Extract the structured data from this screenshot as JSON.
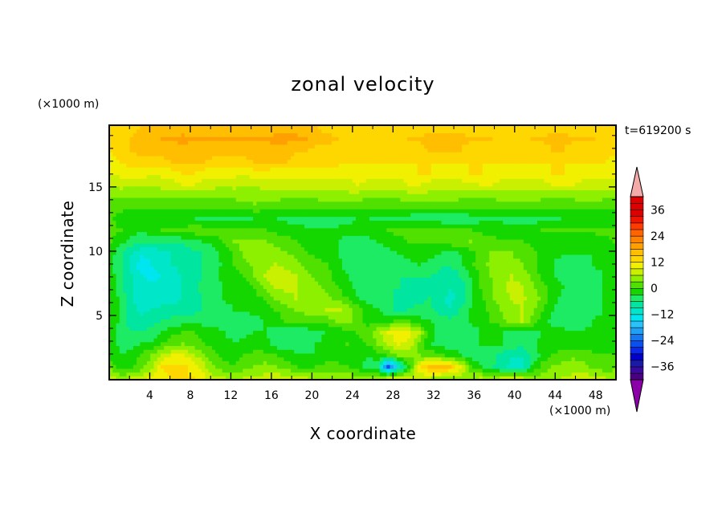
{
  "chart_data": {
    "type": "heatmap",
    "title": "zonal velocity",
    "xlabel": "X coordinate",
    "ylabel": "Z coordinate",
    "x_unit": "(×1000 m)",
    "y_unit": "(×1000 m)",
    "time_label": "t=619200 s",
    "xlim": [
      0,
      50
    ],
    "ylim": [
      0,
      19.8
    ],
    "x_ticks": [
      4,
      8,
      12,
      16,
      20,
      24,
      28,
      32,
      36,
      40,
      44,
      48
    ],
    "y_ticks": [
      5,
      10,
      15
    ],
    "colorbar": {
      "levels": [
        -42,
        -39,
        -36,
        -33,
        -30,
        -27,
        -24,
        -21,
        -18,
        -15,
        -12,
        -9,
        -6,
        -3,
        0,
        3,
        6,
        9,
        12,
        15,
        18,
        21,
        24,
        27,
        30,
        33,
        36,
        39,
        42
      ],
      "tick_values": [
        -36,
        -24,
        -12,
        0,
        12,
        24,
        36
      ],
      "tick_labels": [
        "−36",
        "−24",
        "−12",
        "0",
        "12",
        "24",
        "36"
      ],
      "colors": [
        "#4b0082",
        "#3a0a9e",
        "#1a1aa8",
        "#0000c8",
        "#0a28e6",
        "#0a50f0",
        "#1478f0",
        "#1ea0f5",
        "#28c3fa",
        "#00e6f0",
        "#00e6c8",
        "#00e6a0",
        "#1eeb64",
        "#14d700",
        "#50e100",
        "#8cf000",
        "#c8f000",
        "#f0f000",
        "#ffd700",
        "#ffbe00",
        "#ffa000",
        "#ff8200",
        "#ff6400",
        "#ff3c00",
        "#f01400",
        "#dc0000"
      ],
      "under_color": "#8c00aa",
      "over_color": "#f5aaaa"
    },
    "field": [
      [
        7,
        4,
        6,
        7,
        10,
        11,
        12,
        12,
        12,
        10,
        7,
        6,
        5,
        6,
        6,
        7,
        8,
        7,
        7,
        6,
        5,
        5,
        5,
        5,
        5,
        5,
        5,
        6,
        6,
        7,
        7,
        6,
        5,
        5,
        5,
        5,
        6,
        5,
        6,
        7,
        6,
        5,
        4,
        5,
        6,
        7,
        8,
        7,
        6,
        5
      ],
      [
        1,
        -2,
        -1,
        2,
        5,
        12,
        13,
        13,
        11,
        7,
        3,
        1,
        0,
        2,
        3,
        4,
        3,
        2,
        0,
        -1,
        0,
        1,
        1,
        0,
        -2,
        -4,
        -6,
        -25,
        -11,
        -1,
        11,
        16,
        17,
        15,
        10,
        1,
        -3,
        -5,
        -8,
        -10,
        -12,
        -3,
        1,
        3,
        4,
        5,
        4,
        2,
        1,
        2
      ],
      [
        -1,
        -3,
        -2,
        1,
        3,
        7,
        9,
        9,
        7,
        4,
        1,
        -1,
        -1,
        0,
        1,
        1,
        0,
        -1,
        -2,
        -3,
        -3,
        -2,
        -2,
        -1,
        -2,
        -3,
        -1,
        0,
        3,
        3,
        3,
        2,
        1,
        -1,
        -3,
        -4,
        -5,
        -5,
        -7,
        -9,
        -9,
        -5,
        -2,
        0,
        1,
        2,
        2,
        1,
        0,
        0
      ],
      [
        -2,
        -4,
        -4,
        -3,
        -2,
        0,
        2,
        3,
        2,
        0,
        -1,
        -2,
        -3,
        -2,
        -1,
        -2,
        -4,
        -6,
        -5,
        -4,
        -3,
        -2,
        -1,
        0,
        -1,
        0,
        3,
        7,
        9,
        8,
        2,
        -3,
        -4,
        -5,
        -4,
        -4,
        -3,
        -3,
        -3,
        -4,
        -5,
        -4,
        -2,
        -1,
        -1,
        -2,
        -2,
        -2,
        -1,
        -1
      ],
      [
        -2,
        -5,
        -6,
        -6,
        -5,
        -3,
        -1,
        0,
        0,
        -1,
        -2,
        -3,
        -4,
        -4,
        -3,
        -3,
        -4,
        -5,
        -5,
        -5,
        -4,
        -3,
        -2,
        -1,
        0,
        2,
        5,
        9,
        11,
        10,
        6,
        -1,
        -4,
        -5,
        -5,
        -4,
        -3,
        -3,
        -3,
        -4,
        -5,
        -4,
        -3,
        -2,
        -2,
        -3,
        -3,
        -2,
        -1,
        -1
      ],
      [
        -1,
        -4,
        -8,
        -8,
        -7,
        -6,
        -5,
        -4,
        -4,
        -4,
        -4,
        -4,
        -4,
        -4,
        -4,
        -3,
        -2,
        0,
        1,
        1,
        0,
        1,
        3,
        4,
        2,
        -1,
        -1,
        -1,
        2,
        0,
        -2,
        -3,
        -4,
        -5,
        -5,
        -3,
        -2,
        0,
        2,
        4,
        6,
        2,
        -2,
        -4,
        -5,
        -5,
        -4,
        -3,
        -2,
        -1
      ],
      [
        -1,
        -4,
        -8,
        -10,
        -9,
        -8,
        -8,
        -8,
        -7,
        -6,
        -5,
        -4,
        -3,
        -3,
        -2,
        -2,
        0,
        2,
        3,
        4,
        5,
        6,
        7,
        5,
        2,
        -1,
        -3,
        -5,
        -8,
        -6,
        -5,
        -5,
        -8,
        -9,
        -6,
        -3,
        -1,
        1,
        3,
        5,
        6,
        4,
        0,
        -3,
        -4,
        -5,
        -5,
        -4,
        -3,
        -2
      ],
      [
        -1,
        -4,
        -9,
        -11,
        -11,
        -11,
        -10,
        -9,
        -7,
        -6,
        -5,
        -3,
        -2,
        -2,
        -1,
        0,
        3,
        5,
        6,
        5,
        5,
        4,
        2,
        0,
        -3,
        -4,
        -5,
        -5,
        -7,
        -7,
        -7,
        -6,
        -8,
        -10,
        -8,
        -4,
        -1,
        2,
        5,
        6,
        7,
        5,
        2,
        -2,
        -4,
        -5,
        -5,
        -4,
        -3,
        -2
      ],
      [
        -2,
        -5,
        -9,
        -11,
        -11,
        -11,
        -10,
        -9,
        -7,
        -5,
        -4,
        -3,
        -2,
        -1,
        0,
        4,
        6,
        7,
        6,
        5,
        4,
        2,
        0,
        -2,
        -4,
        -5,
        -5,
        -6,
        -6,
        -7,
        -7,
        -7,
        -7,
        -9,
        -8,
        -4,
        0,
        2,
        5,
        7,
        6,
        4,
        1,
        -1,
        -3,
        -4,
        -5,
        -4,
        -3,
        -2
      ],
      [
        -2,
        -5,
        -9,
        -12,
        -13,
        -12,
        -10,
        -9,
        -7,
        -6,
        -4,
        -2,
        -2,
        0,
        3,
        6,
        8,
        7,
        6,
        4,
        2,
        1,
        -1,
        -3,
        -4,
        -5,
        -6,
        -6,
        -6,
        -6,
        -6,
        -6,
        -7,
        -8,
        -6,
        -3,
        0,
        3,
        5,
        6,
        5,
        2,
        -1,
        -3,
        -4,
        -4,
        -5,
        -4,
        -3,
        -2
      ],
      [
        -3,
        -5,
        -10,
        -14,
        -12,
        -10,
        -9,
        -8,
        -7,
        -6,
        -5,
        -2,
        0,
        2,
        4,
        5,
        6,
        5,
        4,
        2,
        1,
        0,
        -2,
        -4,
        -4,
        -5,
        -5,
        -5,
        -4,
        -4,
        -3,
        -4,
        -5,
        -6,
        -4,
        -1,
        2,
        4,
        5,
        4,
        3,
        1,
        -1,
        -3,
        -4,
        -4,
        -4,
        -3,
        -2,
        -1
      ],
      [
        -2,
        -5,
        -9,
        -11,
        -11,
        -10,
        -9,
        -8,
        -7,
        -6,
        -4,
        -2,
        1,
        4,
        5,
        5,
        4,
        3,
        2,
        0,
        -1,
        -2,
        -3,
        -4,
        -4,
        -5,
        -5,
        -4,
        -3,
        -2,
        -1,
        -2,
        -3,
        -4,
        -3,
        -1,
        1,
        3,
        3,
        3,
        2,
        1,
        -1,
        -2,
        -3,
        -3,
        -3,
        -3,
        -2,
        -1
      ],
      [
        0,
        -2,
        -4,
        -6,
        -6,
        -6,
        -6,
        -5,
        -4,
        -3,
        -2,
        0,
        3,
        4,
        4,
        3,
        2,
        1,
        0,
        -1,
        -2,
        -3,
        -3,
        -4,
        -4,
        -4,
        -3,
        -2,
        -1,
        0,
        0,
        1,
        1,
        2,
        2,
        3,
        2,
        1,
        0,
        0,
        0,
        -1,
        -2,
        -2,
        -3,
        -3,
        -2,
        -2,
        -1,
        0
      ],
      [
        1,
        0,
        -2,
        -2,
        -1,
        0,
        0,
        1,
        2,
        2,
        2,
        1,
        0,
        0,
        0,
        0,
        -1,
        -1,
        -2,
        -2,
        -2,
        -2,
        -2,
        -2,
        -2,
        -2,
        -1,
        0,
        1,
        1,
        1,
        1,
        1,
        0,
        0,
        0,
        -1,
        -1,
        -1,
        -1,
        -1,
        -1,
        0,
        0,
        0,
        0,
        1,
        1,
        1,
        1
      ],
      [
        0,
        -1,
        -2,
        -3,
        -3,
        -3,
        -3,
        -3,
        -3,
        -4,
        -4,
        -4,
        -4,
        -4,
        -3,
        -3,
        -3,
        -4,
        -4,
        -5,
        -5,
        -5,
        -5,
        -4,
        -3,
        -3,
        -4,
        -4,
        -5,
        -5,
        -5,
        -5,
        -5,
        -6,
        -6,
        -5,
        -4,
        -4,
        -4,
        -5,
        -5,
        -5,
        -4,
        -4,
        -3,
        -3,
        -3,
        -3,
        -2,
        -2
      ],
      [
        1,
        1,
        0,
        0,
        1,
        1,
        1,
        1,
        0,
        0,
        0,
        1,
        1,
        1,
        2,
        1,
        0,
        0,
        1,
        1,
        1,
        1,
        1,
        0,
        0,
        0,
        0,
        1,
        1,
        1,
        0,
        0,
        0,
        1,
        1,
        1,
        0,
        0,
        0,
        1,
        1,
        1,
        1,
        0,
        0,
        1,
        1,
        1,
        1,
        1
      ],
      [
        4,
        4,
        3,
        3,
        3,
        4,
        4,
        4,
        4,
        4,
        4,
        3,
        4,
        5,
        5,
        5,
        5,
        4,
        4,
        4,
        4,
        5,
        5,
        5,
        5,
        4,
        4,
        4,
        4,
        5,
        5,
        5,
        5,
        5,
        4,
        4,
        4,
        4,
        5,
        5,
        5,
        5,
        4,
        4,
        4,
        4,
        5,
        5,
        4,
        4
      ],
      [
        6,
        7,
        7,
        6,
        6,
        7,
        8,
        9,
        9,
        8,
        7,
        7,
        7,
        6,
        6,
        7,
        8,
        8,
        7,
        7,
        7,
        7,
        8,
        8,
        9,
        8,
        7,
        7,
        8,
        9,
        9,
        8,
        7,
        7,
        8,
        8,
        9,
        9,
        8,
        8,
        7,
        7,
        8,
        9,
        10,
        9,
        8,
        8,
        7,
        7
      ],
      [
        9,
        10,
        11,
        11,
        10,
        10,
        11,
        12,
        12,
        11,
        10,
        10,
        10,
        10,
        11,
        11,
        10,
        10,
        10,
        11,
        11,
        10,
        10,
        10,
        11,
        11,
        11,
        10,
        10,
        11,
        12,
        12,
        11,
        11,
        11,
        12,
        12,
        11,
        11,
        11,
        11,
        11,
        11,
        12,
        12,
        11,
        11,
        11,
        10,
        10
      ],
      [
        11,
        12,
        13,
        14,
        14,
        14,
        15,
        15,
        15,
        15,
        14,
        14,
        14,
        14,
        15,
        15,
        15,
        15,
        14,
        14,
        13,
        13,
        13,
        12,
        12,
        12,
        12,
        12,
        12,
        12,
        12,
        12,
        12,
        12,
        12,
        12,
        12,
        12,
        12,
        12,
        12,
        12,
        12,
        12,
        12,
        12,
        12,
        12,
        12,
        11
      ],
      [
        12,
        13,
        15,
        16,
        17,
        17,
        17,
        17,
        17,
        17,
        17,
        17,
        17,
        17,
        17,
        17,
        17,
        16,
        15,
        15,
        14,
        14,
        13,
        13,
        12,
        12,
        13,
        13,
        14,
        14,
        14,
        15,
        15,
        15,
        15,
        14,
        14,
        14,
        13,
        13,
        13,
        14,
        14,
        15,
        15,
        14,
        14,
        14,
        13,
        13
      ],
      [
        12,
        13,
        15,
        16,
        17,
        18,
        18,
        19,
        18,
        18,
        18,
        18,
        18,
        18,
        18,
        18,
        19,
        19,
        19,
        18,
        17,
        16,
        15,
        14,
        13,
        13,
        13,
        14,
        14,
        15,
        15,
        16,
        16,
        16,
        16,
        15,
        15,
        15,
        14,
        14,
        14,
        15,
        15,
        16,
        16,
        15,
        15,
        15,
        14,
        14
      ],
      [
        12,
        13,
        14,
        15,
        16,
        16,
        16,
        16,
        16,
        16,
        16,
        16,
        16,
        16,
        16,
        16,
        16,
        16,
        16,
        15,
        15,
        14,
        14,
        13,
        13,
        13,
        13,
        13,
        14,
        14,
        14,
        14,
        14,
        14,
        14,
        14,
        14,
        14,
        13,
        13,
        13,
        13,
        13,
        14,
        14,
        14,
        14,
        14,
        13,
        13
      ]
    ]
  }
}
